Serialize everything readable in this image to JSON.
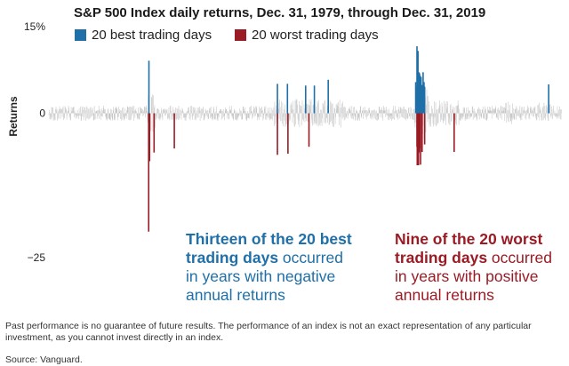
{
  "chart_data": {
    "type": "bar",
    "title": "S&P 500 Index daily returns, Dec. 31, 1979, through Dec. 31, 2019",
    "ylabel": "Returns",
    "ylim": [
      -25,
      15
    ],
    "yticks": [
      {
        "value": 15,
        "label": "15%"
      },
      {
        "value": 0,
        "label": "0"
      },
      {
        "value": -25,
        "label": "−25"
      }
    ],
    "xlim": [
      1980,
      2020
    ],
    "grid": false,
    "legend_position": "top",
    "colors": {
      "best": "#1f6fa8",
      "worst": "#9b1b25",
      "background": "#c8c8c8"
    },
    "series": [
      {
        "name": "20 best trading days",
        "color": "#1f6fa8",
        "points": [
          {
            "x": 1987.8,
            "y": 9.1
          },
          {
            "x": 1997.82,
            "y": 5.1
          },
          {
            "x": 1998.6,
            "y": 5.1
          },
          {
            "x": 2000.02,
            "y": 4.8
          },
          {
            "x": 2000.7,
            "y": 4.8
          },
          {
            "x": 2001.78,
            "y": 5.8
          },
          {
            "x": 2008.7,
            "y": 11.6
          },
          {
            "x": 2008.78,
            "y": 10.8
          },
          {
            "x": 2008.86,
            "y": 7.1
          },
          {
            "x": 2008.9,
            "y": 6.9
          },
          {
            "x": 2008.95,
            "y": 6.5
          },
          {
            "x": 2009.02,
            "y": 6.3
          },
          {
            "x": 2009.18,
            "y": 7.1
          },
          {
            "x": 2009.25,
            "y": 5.4
          },
          {
            "x": 2008.82,
            "y": 5.0
          },
          {
            "x": 2008.6,
            "y": 5.4
          },
          {
            "x": 2009.1,
            "y": 4.9
          },
          {
            "x": 2008.66,
            "y": 4.7
          },
          {
            "x": 2009.3,
            "y": 4.6
          },
          {
            "x": 2018.97,
            "y": 5.0
          }
        ]
      },
      {
        "name": "20 worst trading days",
        "color": "#9b1b25",
        "points": [
          {
            "x": 1987.78,
            "y": -20.5
          },
          {
            "x": 1987.85,
            "y": -8.3
          },
          {
            "x": 1988.2,
            "y": -6.8
          },
          {
            "x": 1989.78,
            "y": -6.1
          },
          {
            "x": 1997.82,
            "y": -7.2
          },
          {
            "x": 1998.64,
            "y": -7.0
          },
          {
            "x": 2000.28,
            "y": -5.8
          },
          {
            "x": 2008.72,
            "y": -9.0
          },
          {
            "x": 2008.76,
            "y": -8.8
          },
          {
            "x": 2008.79,
            "y": -7.6
          },
          {
            "x": 2008.82,
            "y": -9.0
          },
          {
            "x": 2008.84,
            "y": -6.9
          },
          {
            "x": 2008.87,
            "y": -6.7
          },
          {
            "x": 2008.9,
            "y": -6.1
          },
          {
            "x": 2008.95,
            "y": -5.9
          },
          {
            "x": 2008.98,
            "y": -8.9
          },
          {
            "x": 2009.1,
            "y": -6.7
          },
          {
            "x": 2009.3,
            "y": -5.4
          },
          {
            "x": 2011.6,
            "y": -6.7
          },
          {
            "x": 2008.7,
            "y": -5.8
          }
        ]
      }
    ]
  },
  "legend": {
    "best_label": "20 best trading days",
    "worst_label": "20 worst trading days"
  },
  "annotations": {
    "best": {
      "bold_line1": "Thirteen of the 20 best",
      "bold_line2": "trading days",
      "rest_line2": " occurred",
      "line3": "in years with negative",
      "line4": "annual returns"
    },
    "worst": {
      "bold_line1": "Nine of the 20 worst",
      "bold_line2": "trading days",
      "rest_line2": " occurred",
      "line3": "in years with positive",
      "line4": "annual returns"
    }
  },
  "footnote": "Past performance is no guarantee of future results. The performance of an index is not an exact representation of any particular investment, as you cannot invest directly in an index.",
  "source": "Source: Vanguard."
}
